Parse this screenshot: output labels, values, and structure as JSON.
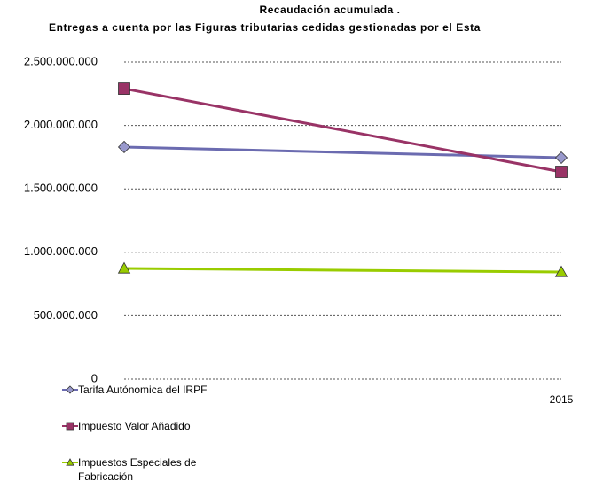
{
  "chart_data": {
    "type": "line",
    "title": "Recaudación acumulada .",
    "subtitle": "Entregas a cuenta por las Figuras tributarias cedidas gestionadas por el Esta",
    "categories": [
      null,
      "2015"
    ],
    "series": [
      {
        "name": "Tarifa Autónomica del IRPF",
        "color": "#6b6bb0",
        "marker_color": "#9999cc",
        "marker": "diamond",
        "values": [
          1830000000,
          1746000000
        ]
      },
      {
        "name": "Impuesto Valor Añadido",
        "color": "#993366",
        "marker_color": "#993366",
        "marker": "square",
        "values": [
          2290000000,
          1634000000
        ]
      },
      {
        "name": "Impuestos Especiales de Fabricación",
        "color": "#99cc00",
        "marker_color": "#99cc00",
        "marker": "triangle",
        "values": [
          873000000,
          845000000
        ]
      }
    ],
    "ylim": [
      0,
      2500000000
    ],
    "yticks": [
      0,
      {
        "value": 500000000,
        "label": "500.000.000"
      },
      {
        "value": 1000000000,
        "label": "1.000.000.000"
      },
      {
        "value": 1500000000,
        "label": "1.500.000.000"
      },
      {
        "value": 2000000000,
        "label": "2.000.000.000"
      },
      {
        "value": 2500000000,
        "label": "2.500.000.000"
      }
    ],
    "grid": true,
    "legend": "bottom-left"
  }
}
